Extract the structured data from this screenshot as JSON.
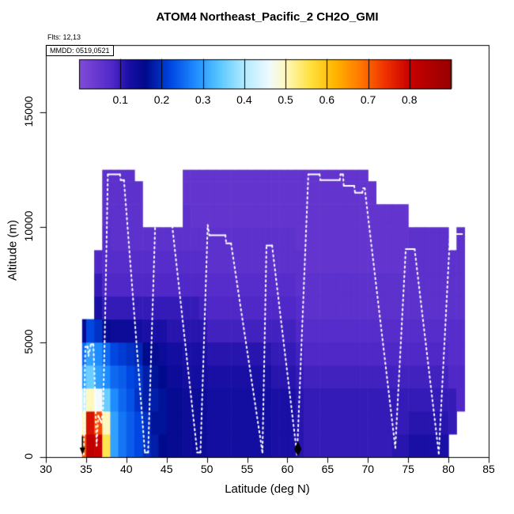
{
  "title": "ATOM4 Northeast_Pacific_2 CH2O_GMI",
  "flts_label": "Flts: 12,13",
  "mmdd_label": "MMDD: 0519,0521",
  "axes": {
    "x": {
      "label": "Latitude (deg N)",
      "min": 30,
      "max": 85
    },
    "y": {
      "label": "Altitude (m)",
      "min": 0,
      "max": 17900
    }
  },
  "colors": {
    "track": "#FFFFFF",
    "marker": "#000000",
    "frame": "#000000",
    "background": "#FFFFFF"
  },
  "chart_data": {
    "type": "heatmap",
    "title": "ATOM4 Northeast_Pacific_2 CH2O_GMI",
    "xlabel": "Latitude (deg N)",
    "ylabel": "Altitude (m)",
    "xlim": [
      30,
      85
    ],
    "ylim": [
      0,
      17900
    ],
    "x_ticks": [
      30,
      35,
      40,
      45,
      50,
      55,
      60,
      65,
      70,
      75,
      80,
      85
    ],
    "y_ticks": [
      0,
      5000,
      10000,
      15000
    ],
    "colorbar": {
      "min": 0.0,
      "max": 0.9,
      "ticks": [
        0.1,
        0.2,
        0.3,
        0.4,
        0.5,
        0.6,
        0.7,
        0.8
      ],
      "tick_labels": [
        "0.1",
        "0.2",
        "0.3",
        "0.4",
        "0.5",
        "0.6",
        "0.7",
        "0.8"
      ],
      "colormap_stops": [
        [
          0.0,
          "#824BD7"
        ],
        [
          0.08,
          "#5028C8"
        ],
        [
          0.12,
          "#190FA5"
        ],
        [
          0.16,
          "#000A8C"
        ],
        [
          0.22,
          "#0046E1"
        ],
        [
          0.28,
          "#1E8CFF"
        ],
        [
          0.34,
          "#5AC8FF"
        ],
        [
          0.4,
          "#B4EBFF"
        ],
        [
          0.46,
          "#F0FAFF"
        ],
        [
          0.5,
          "#FFF8BE"
        ],
        [
          0.56,
          "#FFE13C"
        ],
        [
          0.62,
          "#FFB400"
        ],
        [
          0.68,
          "#FF7800"
        ],
        [
          0.74,
          "#F03200"
        ],
        [
          0.8,
          "#C80000"
        ],
        [
          0.9,
          "#960000"
        ]
      ]
    },
    "lat_edges": [
      34.5,
      35,
      36,
      37,
      38,
      39,
      40,
      41,
      42,
      43,
      44,
      45,
      46,
      47,
      48,
      49,
      50,
      51,
      52,
      53,
      54,
      55,
      56,
      57,
      58,
      59,
      60,
      61,
      62,
      63,
      64,
      65,
      66,
      67,
      68,
      69,
      70,
      71,
      72,
      73,
      74,
      75,
      76,
      77,
      78,
      79,
      80,
      81,
      82
    ],
    "alt_edges": [
      0,
      1000,
      2000,
      3000,
      4000,
      5000,
      6000,
      7000,
      8000,
      9000,
      10000,
      11000,
      12000,
      12500
    ],
    "values": [
      [
        0.7,
        0.82,
        0.8,
        0.55,
        0.3,
        0.26,
        0.24,
        0.22,
        0.2,
        0.18,
        0.16,
        0.15,
        0.15,
        0.14,
        0.14,
        0.14,
        0.13,
        0.13,
        0.13,
        0.13,
        0.13,
        0.13,
        0.13,
        0.13,
        0.12,
        0.12,
        0.12,
        0.11,
        0.1,
        0.1,
        0.1,
        0.1,
        0.1,
        0.1,
        0.1,
        0.1,
        0.1,
        0.1,
        0.1,
        0.11,
        0.11,
        0.12,
        0.12,
        0.12,
        0.12,
        0.12,
        null,
        null
      ],
      [
        0.5,
        0.78,
        0.72,
        0.5,
        0.3,
        0.26,
        0.24,
        0.22,
        0.2,
        0.17,
        0.17,
        0.15,
        0.15,
        0.14,
        0.14,
        0.14,
        0.13,
        0.13,
        0.13,
        0.13,
        0.13,
        0.13,
        0.13,
        0.13,
        0.12,
        0.12,
        0.12,
        0.11,
        0.1,
        0.1,
        0.1,
        0.1,
        0.1,
        0.1,
        0.1,
        0.1,
        0.1,
        0.1,
        0.1,
        0.1,
        0.1,
        0.11,
        0.11,
        0.11,
        0.11,
        0.11,
        0.1,
        null
      ],
      [
        0.42,
        0.5,
        0.46,
        0.35,
        0.28,
        0.25,
        0.23,
        0.2,
        0.18,
        0.18,
        0.17,
        0.15,
        0.15,
        0.14,
        0.14,
        0.14,
        0.13,
        0.13,
        0.13,
        0.13,
        0.13,
        0.13,
        0.13,
        0.13,
        0.12,
        0.12,
        0.12,
        0.11,
        0.1,
        0.1,
        0.1,
        0.1,
        0.1,
        0.1,
        0.1,
        0.1,
        0.1,
        0.1,
        0.1,
        0.1,
        0.1,
        0.1,
        0.1,
        0.1,
        0.1,
        0.1,
        0.1,
        0.08
      ],
      [
        0.3,
        0.35,
        0.3,
        0.28,
        0.25,
        0.24,
        0.22,
        0.21,
        0.18,
        0.17,
        0.16,
        0.14,
        0.14,
        0.13,
        0.13,
        0.13,
        0.12,
        0.12,
        0.12,
        0.12,
        0.12,
        0.12,
        0.12,
        0.12,
        0.11,
        0.11,
        0.11,
        0.1,
        0.09,
        0.09,
        0.09,
        0.09,
        0.09,
        0.09,
        0.09,
        0.09,
        0.09,
        0.09,
        0.09,
        0.09,
        0.09,
        0.09,
        0.09,
        0.09,
        0.09,
        0.09,
        0.08,
        0.08
      ],
      [
        0.25,
        0.3,
        0.28,
        0.25,
        0.22,
        0.21,
        0.2,
        0.19,
        0.16,
        0.15,
        0.14,
        0.13,
        0.13,
        0.12,
        0.12,
        0.12,
        0.11,
        0.11,
        0.11,
        0.11,
        0.11,
        0.11,
        0.11,
        0.11,
        0.1,
        0.1,
        0.1,
        0.09,
        0.08,
        0.08,
        0.08,
        0.08,
        0.08,
        0.08,
        0.08,
        0.08,
        0.08,
        0.08,
        0.08,
        0.08,
        0.08,
        0.08,
        0.08,
        0.08,
        0.08,
        0.08,
        0.07,
        0.07
      ],
      [
        0.15,
        0.22,
        0.2,
        0.15,
        0.14,
        0.14,
        0.14,
        0.13,
        0.12,
        0.12,
        0.12,
        0.11,
        0.11,
        0.11,
        0.11,
        0.11,
        0.09,
        0.09,
        0.09,
        0.09,
        0.09,
        0.09,
        0.09,
        0.09,
        0.09,
        0.09,
        0.09,
        0.08,
        0.07,
        0.07,
        0.07,
        0.07,
        0.07,
        0.07,
        0.07,
        0.07,
        0.07,
        0.07,
        0.07,
        0.07,
        0.07,
        0.07,
        0.07,
        0.07,
        0.07,
        0.07,
        0.07,
        0.07
      ],
      [
        null,
        null,
        0.12,
        0.1,
        0.1,
        0.1,
        0.1,
        0.1,
        0.1,
        0.1,
        0.1,
        0.1,
        0.1,
        0.1,
        0.1,
        0.09,
        0.08,
        0.08,
        0.08,
        0.08,
        0.08,
        0.08,
        0.08,
        0.08,
        0.08,
        0.08,
        0.08,
        0.07,
        0.06,
        0.06,
        0.06,
        0.06,
        0.06,
        0.06,
        0.06,
        0.06,
        0.06,
        0.06,
        0.06,
        0.06,
        0.06,
        0.06,
        0.06,
        0.06,
        0.06,
        0.06,
        0.06,
        0.06
      ],
      [
        null,
        null,
        0.1,
        0.08,
        0.08,
        0.08,
        0.08,
        0.08,
        0.08,
        0.08,
        0.08,
        0.08,
        0.08,
        0.08,
        0.08,
        0.08,
        0.07,
        0.07,
        0.07,
        0.07,
        0.07,
        0.07,
        0.07,
        0.07,
        0.07,
        0.07,
        0.07,
        0.06,
        0.06,
        0.06,
        0.06,
        0.06,
        0.06,
        0.06,
        0.06,
        0.06,
        0.06,
        0.06,
        0.06,
        0.06,
        0.06,
        0.06,
        0.06,
        0.06,
        0.06,
        0.06,
        0.06,
        0.06
      ],
      [
        null,
        null,
        0.08,
        0.07,
        0.07,
        0.07,
        0.07,
        0.07,
        0.07,
        0.07,
        0.07,
        0.07,
        0.07,
        0.07,
        0.07,
        0.07,
        0.06,
        0.06,
        0.06,
        0.06,
        0.06,
        0.06,
        0.06,
        0.06,
        0.06,
        0.06,
        0.06,
        0.06,
        0.05,
        0.05,
        0.05,
        0.05,
        0.05,
        0.05,
        0.05,
        0.05,
        0.05,
        0.05,
        0.05,
        0.05,
        0.05,
        0.06,
        0.06,
        0.06,
        0.06,
        0.06,
        0.06,
        0.06
      ],
      [
        null,
        null,
        null,
        0.07,
        0.06,
        0.06,
        0.06,
        0.06,
        0.06,
        0.06,
        0.06,
        0.06,
        0.06,
        0.06,
        0.06,
        0.06,
        0.06,
        0.06,
        0.06,
        0.06,
        0.06,
        0.06,
        0.06,
        0.06,
        0.06,
        0.06,
        0.06,
        0.05,
        0.05,
        0.05,
        0.05,
        0.05,
        0.05,
        0.05,
        0.05,
        0.05,
        0.05,
        0.05,
        0.05,
        0.05,
        0.05,
        0.06,
        0.06,
        0.06,
        0.06,
        0.06,
        null,
        0.06
      ],
      [
        null,
        null,
        null,
        0.06,
        0.06,
        0.06,
        0.06,
        0.06,
        null,
        null,
        null,
        null,
        null,
        0.06,
        0.05,
        0.05,
        0.05,
        0.05,
        0.05,
        0.05,
        0.05,
        0.05,
        0.05,
        0.05,
        0.05,
        0.05,
        0.05,
        0.05,
        0.05,
        0.05,
        0.05,
        0.05,
        0.05,
        0.05,
        0.05,
        0.05,
        0.05,
        0.05,
        0.05,
        0.05,
        0.05,
        null,
        null,
        null,
        null,
        null,
        null,
        null
      ],
      [
        null,
        null,
        null,
        0.06,
        0.06,
        0.06,
        0.06,
        0.06,
        null,
        null,
        null,
        null,
        null,
        0.05,
        0.05,
        0.05,
        0.05,
        0.05,
        0.05,
        0.05,
        0.05,
        0.05,
        0.05,
        0.05,
        0.05,
        0.05,
        0.05,
        0.05,
        0.05,
        0.05,
        0.05,
        0.05,
        0.05,
        0.05,
        0.05,
        0.05,
        0.05,
        null,
        null,
        null,
        null,
        null,
        null,
        null,
        null,
        null,
        null,
        null
      ],
      [
        null,
        null,
        null,
        0.06,
        0.06,
        0.06,
        0.06,
        null,
        null,
        null,
        null,
        null,
        null,
        0.05,
        0.05,
        0.05,
        0.05,
        0.05,
        0.05,
        0.05,
        0.05,
        0.05,
        0.05,
        0.05,
        0.05,
        0.05,
        0.05,
        0.05,
        0.05,
        0.05,
        0.05,
        0.05,
        0.05,
        0.05,
        0.05,
        0.05,
        null,
        null,
        null,
        null,
        null,
        null,
        null,
        null,
        null,
        null,
        null,
        null
      ]
    ],
    "flight_track": {
      "lat": [
        34.7,
        34.8,
        34.9,
        35.2,
        35.3,
        35.6,
        35.9,
        36.1,
        36.3,
        36.5,
        36.9,
        37.1,
        37.3,
        37.7,
        39.2,
        39.3,
        39.7,
        42.3,
        42.7,
        43.6,
        45.4,
        45.5,
        45.7,
        48.8,
        49.2,
        50.1,
        50.3,
        52.3,
        52.4,
        53.0,
        56.9,
        57.4,
        58.1,
        61.2,
        62.6,
        64.0,
        64.1,
        66.5,
        66.6,
        66.9,
        67.0,
        68.3,
        68.4,
        69.3,
        69.4,
        69.6,
        73.4,
        74.7,
        75.8,
        78.8,
        80.2,
        81.7
      ],
      "alt": [
        100,
        2500,
        4800,
        4800,
        4400,
        4900,
        4900,
        3000,
        500,
        1800,
        1500,
        2100,
        5000,
        12300,
        12300,
        12050,
        12050,
        200,
        200,
        10350,
        10350,
        10050,
        10050,
        200,
        200,
        10100,
        9650,
        9650,
        9300,
        9300,
        200,
        9200,
        9200,
        100,
        12300,
        12300,
        12050,
        12050,
        12300,
        12300,
        11800,
        11800,
        11500,
        11500,
        11700,
        11700,
        400,
        9050,
        9050,
        150,
        9700,
        9700
      ]
    },
    "markers": [
      {
        "shape": "arrow-down",
        "lat": 34.55
      },
      {
        "shape": "diamond",
        "lat": 61.3
      }
    ]
  }
}
